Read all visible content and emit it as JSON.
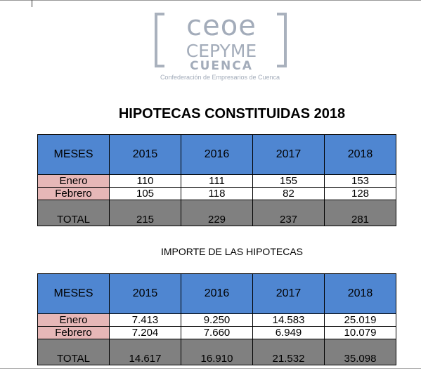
{
  "logo": {
    "line1": "ceoe",
    "line2": "CEPYME",
    "line3": "CUENCA",
    "subtitle": "Confederación de Empresarios de Cuenca"
  },
  "table1": {
    "title": "HIPOTECAS CONSTITUIDAS 2018",
    "header": [
      "MESES",
      "2015",
      "2016",
      "2017",
      "2018"
    ],
    "rows": [
      [
        "Enero",
        "110",
        "111",
        "155",
        "153"
      ],
      [
        "Febrero",
        "105",
        "118",
        "82",
        "128"
      ]
    ],
    "total": [
      "TOTAL",
      "215",
      "229",
      "237",
      "281"
    ]
  },
  "table2": {
    "title": "IMPORTE DE LAS HIPOTECAS",
    "header": [
      "MESES",
      "2015",
      "2016",
      "2017",
      "2018"
    ],
    "rows": [
      [
        "Enero",
        "7.413",
        "9.250",
        "14.583",
        "25.019"
      ],
      [
        "Febrero",
        "7.204",
        "7.660",
        "6.949",
        "10.079"
      ]
    ],
    "total": [
      "TOTAL",
      "14.617",
      "16.910",
      "21.532",
      "35.098"
    ]
  },
  "colors": {
    "header_blue": "#4f86d1",
    "month_pink": "#e6b7b7",
    "total_gray": "#808080",
    "logo_gray": "#a3acba"
  }
}
